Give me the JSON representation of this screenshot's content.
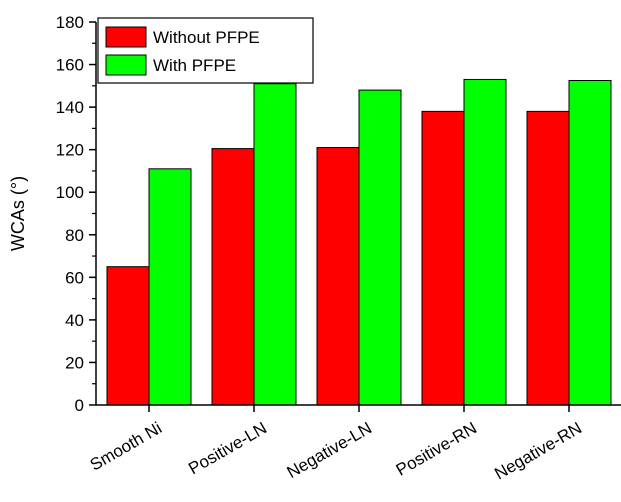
{
  "chart_data": {
    "type": "bar",
    "title": "",
    "xlabel": "",
    "ylabel": "WCAs (°)",
    "ylim": [
      0,
      180
    ],
    "yticks": [
      0,
      20,
      40,
      60,
      80,
      100,
      120,
      140,
      160,
      180
    ],
    "categories": [
      "Smooth Ni",
      "Positive-LN",
      "Negative-LN",
      "Positive-RN",
      "Negative-RN"
    ],
    "series": [
      {
        "name": "Without PFPE",
        "color": "#ff0000",
        "values": [
          65,
          120.5,
          121,
          138,
          138
        ]
      },
      {
        "name": "With PFPE",
        "color": "#00ff00",
        "values": [
          111,
          151,
          148,
          153,
          152.5
        ]
      }
    ],
    "legend_position": "top-left",
    "grid": false
  }
}
